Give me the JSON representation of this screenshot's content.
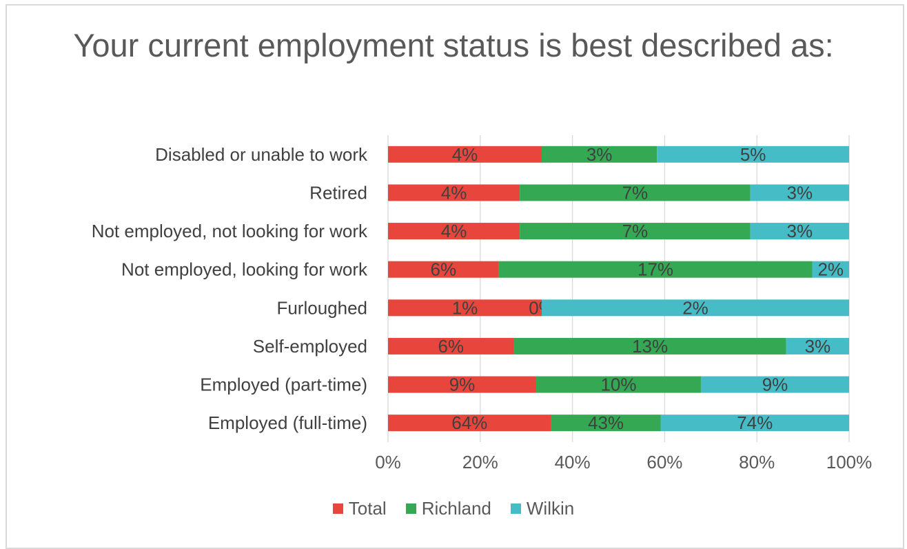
{
  "chart_data": {
    "type": "bar",
    "orientation": "horizontal",
    "stacked": "percent",
    "title": "Your current employment status is best described as:",
    "categories": [
      "Disabled or unable to work",
      "Retired",
      "Not employed, not looking for work",
      "Not employed, looking for work",
      "Furloughed",
      "Self-employed",
      "Employed (part-time)",
      "Employed (full-time)"
    ],
    "series": [
      {
        "name": "Total",
        "color": "#e8453c",
        "values": [
          4,
          4,
          4,
          6,
          1,
          6,
          9,
          64
        ],
        "labels": [
          "4%",
          "4%",
          "4%",
          "6%",
          "1%",
          "6%",
          "9%",
          "64%"
        ]
      },
      {
        "name": "Richland",
        "color": "#34a853",
        "values": [
          3,
          7,
          7,
          17,
          0,
          13,
          10,
          43
        ],
        "labels": [
          "3%",
          "7%",
          "7%",
          "17%",
          "0%",
          "13%",
          "10%",
          "43%"
        ]
      },
      {
        "name": "Wilkin",
        "color": "#46bdc6",
        "values": [
          5,
          3,
          3,
          2,
          2,
          3,
          9,
          74
        ],
        "labels": [
          "5%",
          "3%",
          "3%",
          "2%",
          "2%",
          "3%",
          "9%",
          "74%"
        ]
      }
    ],
    "xlim": [
      0,
      100
    ],
    "xticks": [
      "0%",
      "20%",
      "40%",
      "60%",
      "80%",
      "100%"
    ],
    "grid": true,
    "legend_position": "bottom"
  }
}
